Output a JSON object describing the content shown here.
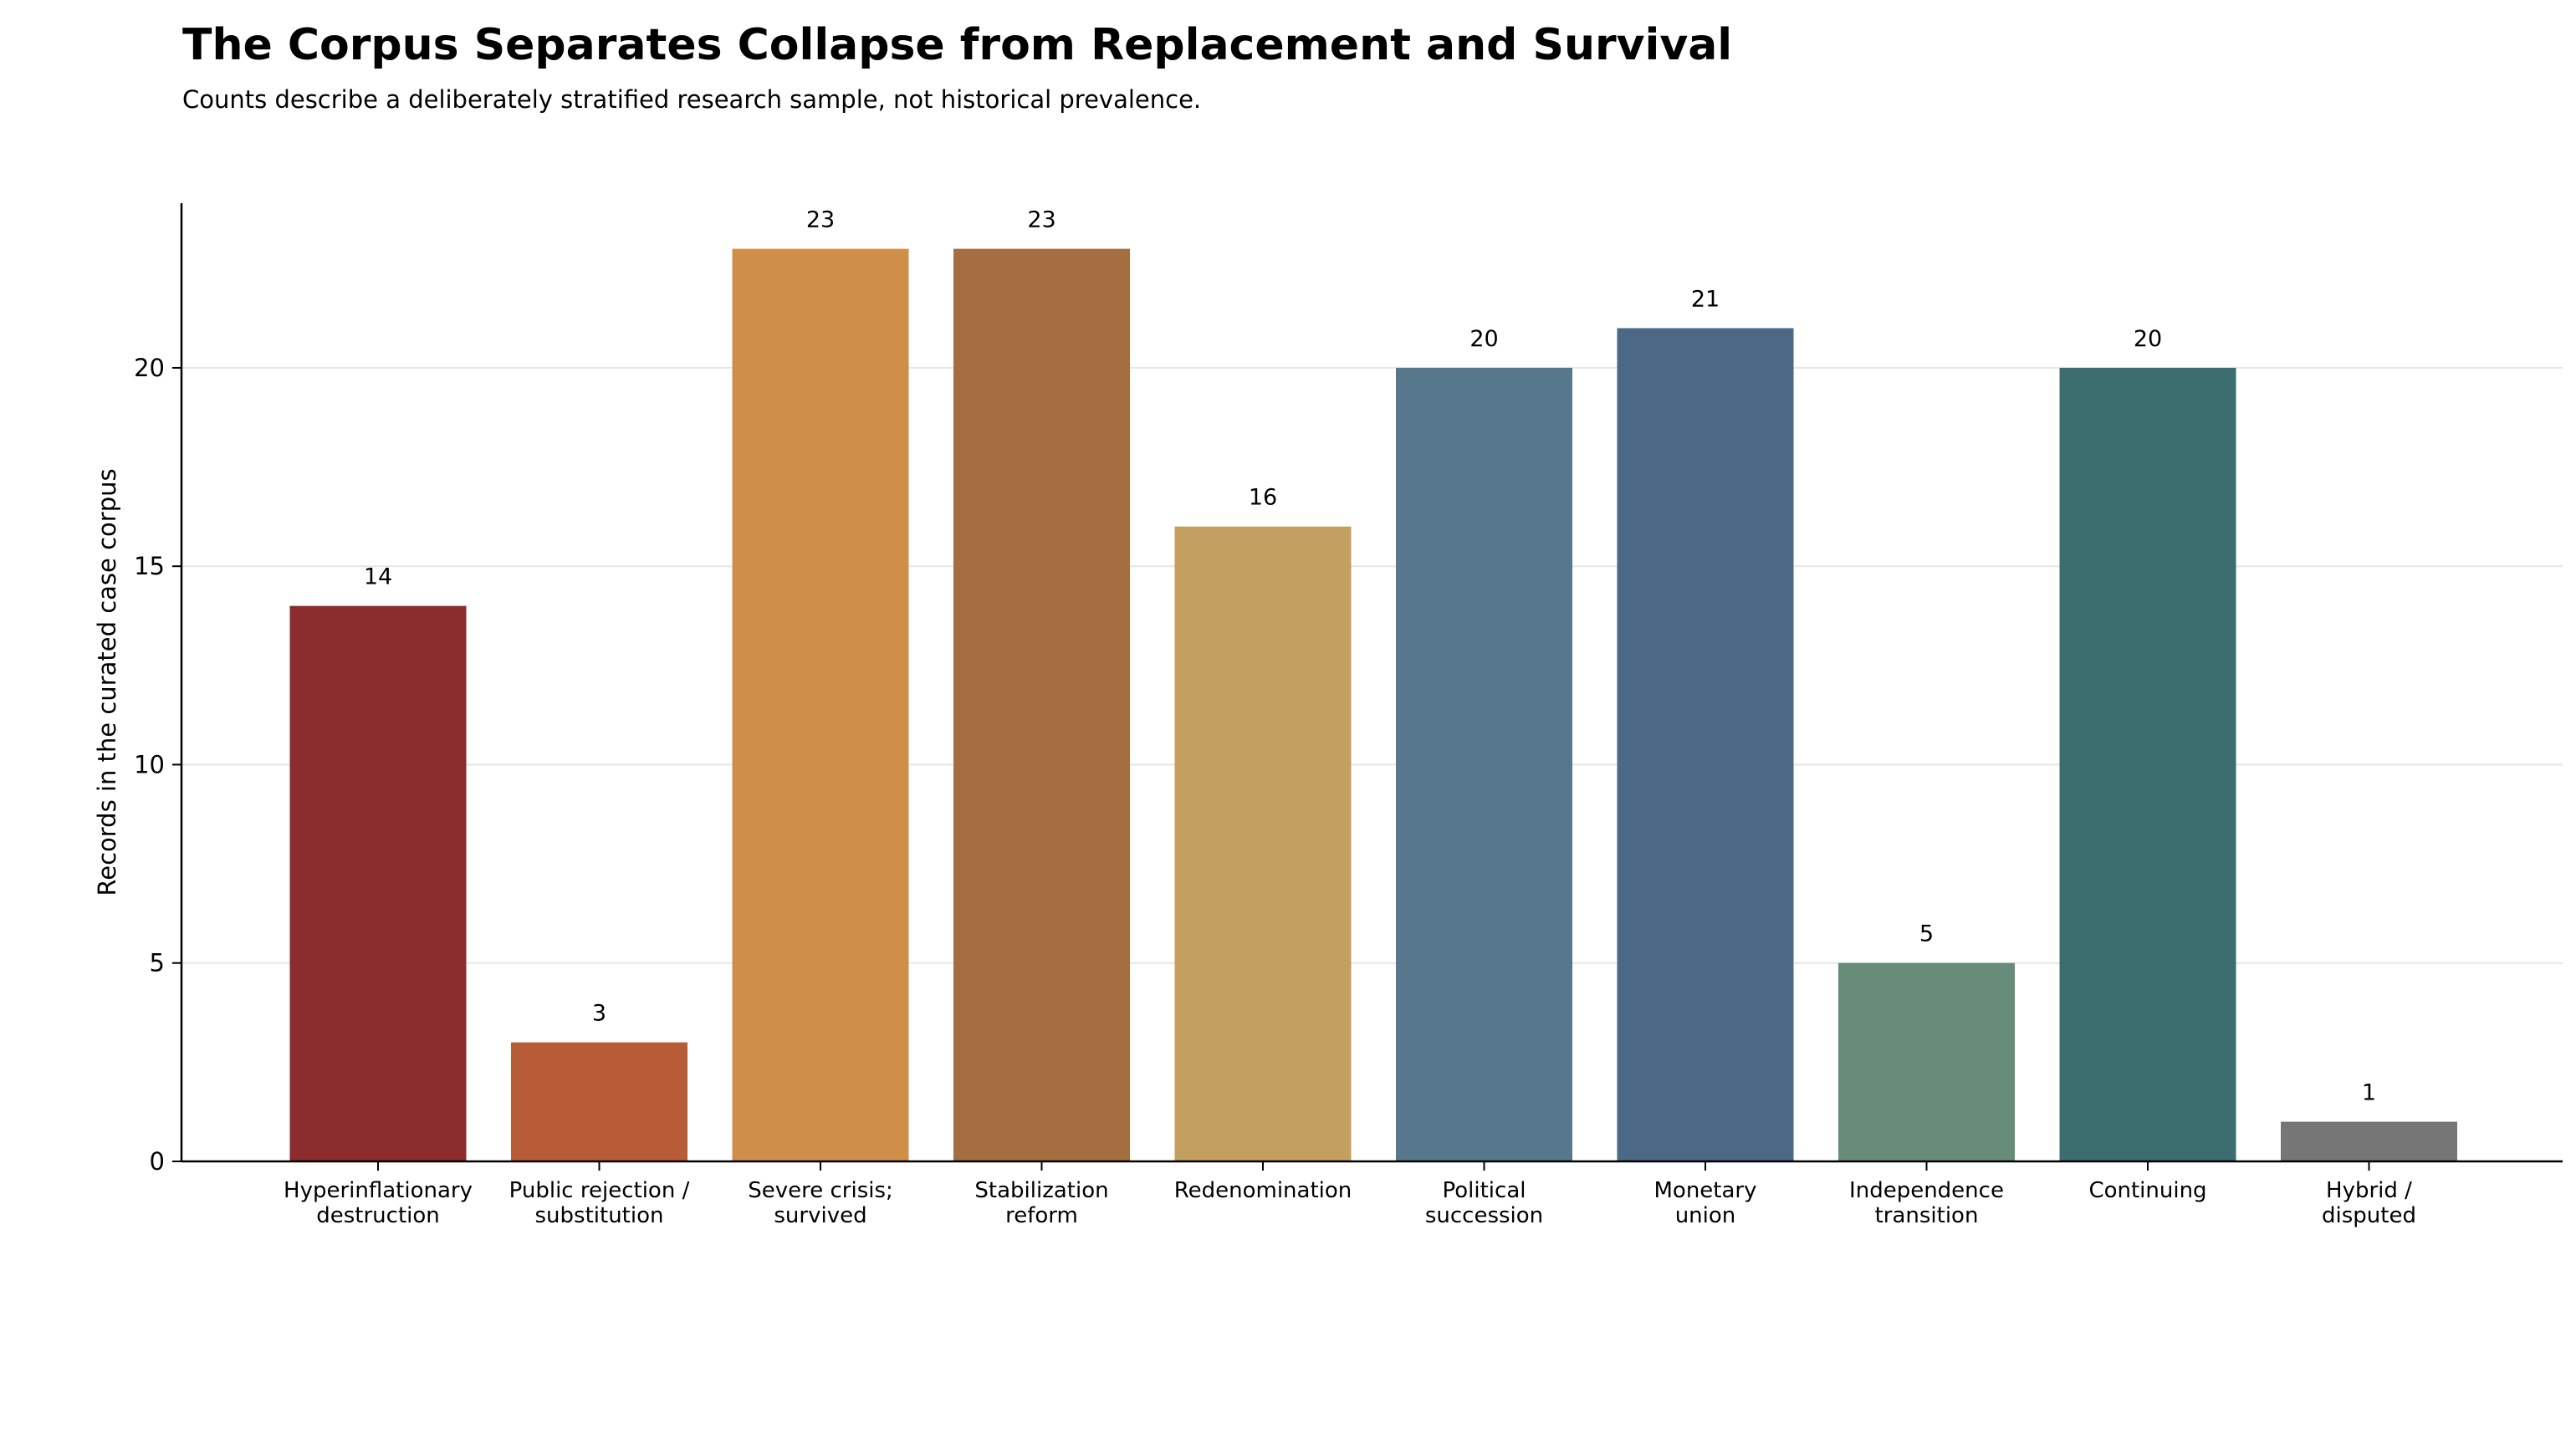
{
  "title": "The Corpus Separates Collapse from Replacement and Survival",
  "subtitle": "Counts describe a deliberately stratified research sample, not historical prevalence.",
  "chart_data": {
    "type": "bar",
    "categories": [
      [
        "Hyperinflationary",
        "destruction"
      ],
      [
        "Public rejection /",
        "substitution"
      ],
      [
        "Severe crisis;",
        "survived"
      ],
      [
        "Stabilization",
        "reform"
      ],
      [
        "Redenomination"
      ],
      [
        "Political",
        "succession"
      ],
      [
        "Monetary",
        "union"
      ],
      [
        "Independence",
        "transition"
      ],
      [
        "Continuing"
      ],
      [
        "Hybrid /",
        "disputed"
      ]
    ],
    "values": [
      14,
      3,
      23,
      23,
      16,
      20,
      21,
      5,
      20,
      1
    ],
    "colors": [
      "#8b2c2e",
      "#b85c38",
      "#cf8f4b",
      "#a46e40",
      "#c3a061",
      "#57788c",
      "#4b6885",
      "#688c7a",
      "#3d6e6f",
      "#767676"
    ],
    "xlabel": "",
    "ylabel": "Records in the curated case corpus",
    "ylim": [
      0,
      24.15
    ],
    "yticks": [
      0,
      5,
      10,
      15,
      20
    ],
    "grid": "horizontal",
    "legend": "none"
  }
}
